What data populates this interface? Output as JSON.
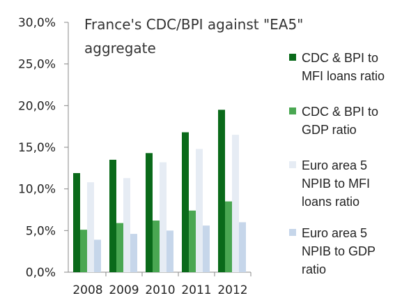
{
  "chart_data": {
    "type": "bar",
    "title_lines": [
      "France's CDC/BPI against \"EA5\"",
      "aggregate"
    ],
    "categories": [
      "2008",
      "2009",
      "2010",
      "2011",
      "2012"
    ],
    "y_ticks": [
      "0,0%",
      "5,0%",
      "10,0%",
      "15,0%",
      "20,0%",
      "25,0%",
      "30,0%"
    ],
    "ylim": [
      0,
      30
    ],
    "grid": false,
    "legend_position": "right",
    "series": [
      {
        "name_lines": [
          "CDC & BPI to",
          "MFI loans ratio"
        ],
        "color": "#0a6a1a",
        "values": [
          11.9,
          13.5,
          14.3,
          16.8,
          19.5
        ]
      },
      {
        "name_lines": [
          "CDC & BPI to",
          "GDP ratio"
        ],
        "color": "#4aa752",
        "values": [
          5.1,
          5.9,
          6.2,
          7.4,
          8.5
        ]
      },
      {
        "name_lines": [
          "Euro area 5",
          "NPIB to MFI",
          "loans ratio"
        ],
        "color": "#e6ecf4",
        "values": [
          10.8,
          11.3,
          13.2,
          14.8,
          16.5
        ]
      },
      {
        "name_lines": [
          "Euro area 5",
          "NPIB to GDP",
          "ratio"
        ],
        "color": "#c6d6ea",
        "values": [
          3.9,
          4.6,
          5.0,
          5.6,
          6.0
        ]
      }
    ]
  }
}
